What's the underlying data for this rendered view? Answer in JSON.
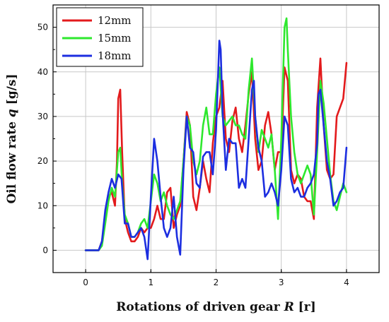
{
  "chart_data": {
    "type": "line",
    "xlabel": "Rotations of driven gear R [r]",
    "ylabel": "Oil flow rate q [g/s]",
    "xlabel_parts": [
      "Rotations of driven gear ",
      "R",
      " [r]"
    ],
    "ylabel_parts": [
      "Oil flow rate ",
      "q",
      " [g/s]"
    ],
    "xlim": [
      -0.5,
      4.5
    ],
    "ylim": [
      -5,
      55
    ],
    "xticks": [
      0,
      1,
      2,
      3,
      4
    ],
    "yticks": [
      0,
      10,
      20,
      30,
      40,
      50
    ],
    "grid": true,
    "legend": "top-left",
    "series": [
      {
        "name": "12mm",
        "color": "#e31a1c",
        "x": [
          0,
          0.1,
          0.2,
          0.25,
          0.3,
          0.35,
          0.4,
          0.45,
          0.48,
          0.5,
          0.53,
          0.56,
          0.6,
          0.65,
          0.7,
          0.75,
          0.8,
          0.85,
          0.9,
          0.95,
          1.0,
          1.05,
          1.1,
          1.15,
          1.2,
          1.25,
          1.3,
          1.35,
          1.4,
          1.45,
          1.5,
          1.55,
          1.6,
          1.65,
          1.7,
          1.75,
          1.8,
          1.85,
          1.9,
          1.95,
          2.0,
          2.05,
          2.1,
          2.15,
          2.2,
          2.25,
          2.3,
          2.35,
          2.4,
          2.45,
          2.5,
          2.55,
          2.6,
          2.65,
          2.7,
          2.75,
          2.8,
          2.85,
          2.9,
          2.95,
          3.0,
          3.05,
          3.1,
          3.15,
          3.2,
          3.25,
          3.3,
          3.35,
          3.4,
          3.45,
          3.5,
          3.55,
          3.6,
          3.65,
          3.7,
          3.75,
          3.8,
          3.85,
          3.9,
          3.95,
          4.0
        ],
        "y": [
          0,
          0,
          0,
          2,
          7,
          12,
          13,
          10,
          20,
          34,
          36,
          22,
          7,
          4,
          2,
          2,
          3,
          5,
          4,
          5,
          5,
          7,
          10,
          7,
          7,
          13,
          14,
          5,
          8,
          10,
          20,
          31,
          28,
          12,
          9,
          14,
          20,
          16,
          13,
          24,
          30,
          32,
          38,
          25,
          22,
          29,
          32,
          25,
          22,
          28,
          35,
          40,
          25,
          18,
          20,
          28,
          31,
          26,
          18,
          22,
          22,
          41,
          38,
          18,
          15,
          17,
          16,
          12,
          11,
          11,
          7,
          32,
          43,
          28,
          18,
          16,
          17,
          30,
          32,
          34,
          42
        ]
      },
      {
        "name": "15mm",
        "color": "#2ee82e",
        "x": [
          0,
          0.1,
          0.2,
          0.25,
          0.3,
          0.35,
          0.4,
          0.45,
          0.5,
          0.53,
          0.56,
          0.6,
          0.65,
          0.7,
          0.75,
          0.8,
          0.85,
          0.9,
          0.95,
          1.0,
          1.05,
          1.1,
          1.15,
          1.2,
          1.25,
          1.3,
          1.35,
          1.4,
          1.45,
          1.5,
          1.55,
          1.6,
          1.65,
          1.7,
          1.75,
          1.8,
          1.85,
          1.9,
          1.95,
          2.0,
          2.05,
          2.1,
          2.15,
          2.2,
          2.25,
          2.3,
          2.35,
          2.4,
          2.45,
          2.5,
          2.55,
          2.6,
          2.65,
          2.7,
          2.75,
          2.8,
          2.85,
          2.9,
          2.95,
          3.0,
          3.05,
          3.08,
          3.1,
          3.15,
          3.2,
          3.25,
          3.3,
          3.35,
          3.4,
          3.45,
          3.5,
          3.55,
          3.6,
          3.65,
          3.7,
          3.75,
          3.8,
          3.85,
          3.9,
          3.95,
          4.0
        ],
        "y": [
          0,
          0,
          0,
          1,
          6,
          11,
          14,
          12,
          22,
          23,
          15,
          8,
          6,
          3,
          3,
          4,
          6,
          7,
          5,
          11,
          17,
          15,
          11,
          13,
          10,
          8,
          7,
          9,
          11,
          20,
          30,
          28,
          20,
          17,
          20,
          28,
          32,
          26,
          26,
          35,
          41,
          30,
          28,
          29,
          30,
          28,
          28,
          26,
          25,
          36,
          43,
          30,
          22,
          27,
          25,
          23,
          26,
          18,
          7,
          25,
          50,
          52,
          45,
          30,
          22,
          17,
          15,
          17,
          19,
          17,
          8,
          22,
          38,
          33,
          25,
          17,
          11,
          9,
          12,
          15,
          13
        ]
      },
      {
        "name": "18mm",
        "color": "#1c2ee0",
        "x": [
          0,
          0.1,
          0.2,
          0.25,
          0.3,
          0.35,
          0.4,
          0.45,
          0.5,
          0.55,
          0.6,
          0.65,
          0.7,
          0.75,
          0.8,
          0.85,
          0.9,
          0.95,
          1.0,
          1.05,
          1.1,
          1.15,
          1.2,
          1.25,
          1.3,
          1.35,
          1.4,
          1.45,
          1.5,
          1.55,
          1.6,
          1.65,
          1.7,
          1.75,
          1.8,
          1.85,
          1.9,
          1.95,
          2.0,
          2.05,
          2.07,
          2.1,
          2.15,
          2.2,
          2.25,
          2.3,
          2.35,
          2.4,
          2.45,
          2.5,
          2.55,
          2.58,
          2.6,
          2.65,
          2.7,
          2.75,
          2.8,
          2.85,
          2.9,
          2.95,
          3.0,
          3.05,
          3.1,
          3.15,
          3.2,
          3.25,
          3.3,
          3.35,
          3.4,
          3.45,
          3.5,
          3.55,
          3.57,
          3.6,
          3.65,
          3.7,
          3.75,
          3.8,
          3.85,
          3.9,
          3.95,
          4.0
        ],
        "y": [
          0,
          0,
          0,
          2,
          9,
          13,
          16,
          14,
          17,
          16,
          6,
          6,
          3,
          3,
          4,
          5,
          3,
          -2,
          12,
          25,
          20,
          12,
          5,
          3,
          5,
          12,
          3,
          -1,
          18,
          30,
          23,
          22,
          15,
          14,
          21,
          22,
          22,
          17,
          27,
          47,
          45,
          31,
          18,
          25,
          24,
          24,
          14,
          16,
          14,
          25,
          36,
          38,
          30,
          23,
          20,
          12,
          13,
          15,
          13,
          10,
          18,
          30,
          28,
          16,
          13,
          14,
          12,
          12,
          14,
          15,
          17,
          24,
          35,
          36,
          28,
          20,
          16,
          10,
          11,
          13,
          14,
          23
        ]
      }
    ]
  }
}
